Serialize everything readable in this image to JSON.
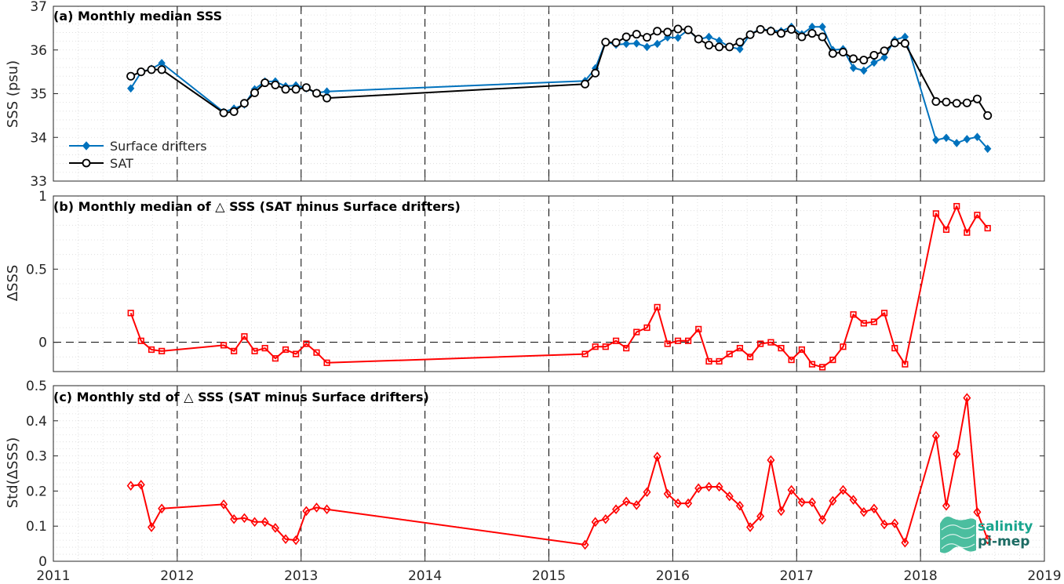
{
  "colors": {
    "drifters": "#0072BD",
    "sat": "#000000",
    "delta": "#FF0000",
    "grid": "#d9d9d9",
    "axis": "#262626"
  },
  "chart_data": [
    {
      "type": "line",
      "title": "(a) Monthly median SSS",
      "ylabel": "SSS (psu)",
      "xlabel": "",
      "xlim": [
        2011,
        2019
      ],
      "ylim": [
        33,
        37
      ],
      "yticks": [
        "33",
        "34",
        "35",
        "36",
        "37"
      ],
      "legend_position": "bottom-left",
      "grid": true,
      "series": [
        {
          "name": "Surface drifters",
          "marker": "diamond-filled",
          "x": [
            2011.625,
            2011.708,
            2011.792,
            2011.875,
            2012.375,
            2012.458,
            2012.542,
            2012.625,
            2012.708,
            2012.792,
            2012.875,
            2012.958,
            2013.042,
            2013.125,
            2013.208,
            2015.292,
            2015.375,
            2015.458,
            2015.542,
            2015.625,
            2015.708,
            2015.792,
            2015.875,
            2015.958,
            2016.042,
            2016.125,
            2016.208,
            2016.292,
            2016.375,
            2016.458,
            2016.542,
            2016.625,
            2016.708,
            2016.792,
            2016.875,
            2016.958,
            2017.042,
            2017.125,
            2017.208,
            2017.292,
            2017.375,
            2017.458,
            2017.542,
            2017.625,
            2017.708,
            2017.792,
            2017.875,
            2018.125,
            2018.208,
            2018.292,
            2018.375,
            2018.458,
            2018.542
          ],
          "y": [
            35.12,
            35.49,
            35.57,
            35.7,
            34.58,
            34.66,
            34.75,
            35.1,
            35.28,
            35.28,
            35.17,
            35.19,
            35.12,
            35.02,
            35.05,
            35.29,
            35.58,
            36.19,
            36.12,
            36.14,
            36.15,
            36.07,
            36.14,
            36.29,
            36.28,
            36.46,
            36.24,
            36.3,
            36.21,
            36.07,
            36.02,
            36.36,
            36.48,
            36.45,
            36.43,
            36.53,
            36.36,
            36.53,
            36.53,
            36.0,
            36.02,
            35.59,
            35.53,
            35.71,
            35.83,
            36.23,
            36.3,
            33.94,
            33.99,
            33.87,
            33.96,
            34.01,
            33.74
          ]
        },
        {
          "name": "SAT",
          "marker": "circle-open",
          "x": [
            2011.625,
            2011.708,
            2011.792,
            2011.875,
            2012.375,
            2012.458,
            2012.542,
            2012.625,
            2012.708,
            2012.792,
            2012.875,
            2012.958,
            2013.042,
            2013.125,
            2013.208,
            2015.292,
            2015.375,
            2015.458,
            2015.542,
            2015.625,
            2015.708,
            2015.792,
            2015.875,
            2015.958,
            2016.042,
            2016.125,
            2016.208,
            2016.292,
            2016.375,
            2016.458,
            2016.542,
            2016.625,
            2016.708,
            2016.792,
            2016.875,
            2016.958,
            2017.042,
            2017.125,
            2017.208,
            2017.292,
            2017.375,
            2017.458,
            2017.542,
            2017.625,
            2017.708,
            2017.792,
            2017.875,
            2018.125,
            2018.208,
            2018.292,
            2018.375,
            2018.458,
            2018.542
          ],
          "y": [
            35.4,
            35.5,
            35.55,
            35.55,
            34.56,
            34.59,
            34.78,
            35.02,
            35.25,
            35.2,
            35.1,
            35.1,
            35.14,
            35.01,
            34.9,
            35.22,
            35.47,
            36.18,
            36.17,
            36.3,
            36.36,
            36.29,
            36.43,
            36.41,
            36.48,
            36.46,
            36.25,
            36.11,
            36.07,
            36.07,
            36.18,
            36.35,
            36.47,
            36.43,
            36.38,
            36.47,
            36.3,
            36.38,
            36.3,
            35.92,
            35.95,
            35.8,
            35.77,
            35.88,
            35.98,
            36.16,
            36.15,
            34.82,
            34.81,
            34.78,
            34.79,
            34.88,
            34.5
          ]
        }
      ]
    },
    {
      "type": "line",
      "title": "(b) Monthly median of △ SSS (SAT minus Surface drifters)",
      "ylabel": "ΔSSS",
      "xlabel": "",
      "xlim": [
        2011,
        2019
      ],
      "ylim": [
        -0.2,
        1
      ],
      "yticks": [
        "0",
        "0.5",
        "1"
      ],
      "zero_line": true,
      "grid": true,
      "series": [
        {
          "name": "",
          "marker": "square-open",
          "x": [
            2011.625,
            2011.708,
            2011.792,
            2011.875,
            2012.375,
            2012.458,
            2012.542,
            2012.625,
            2012.708,
            2012.792,
            2012.875,
            2012.958,
            2013.042,
            2013.125,
            2013.208,
            2015.292,
            2015.375,
            2015.458,
            2015.542,
            2015.625,
            2015.708,
            2015.792,
            2015.875,
            2015.958,
            2016.042,
            2016.125,
            2016.208,
            2016.292,
            2016.375,
            2016.458,
            2016.542,
            2016.625,
            2016.708,
            2016.792,
            2016.875,
            2016.958,
            2017.042,
            2017.125,
            2017.208,
            2017.292,
            2017.375,
            2017.458,
            2017.542,
            2017.625,
            2017.708,
            2017.792,
            2017.875,
            2018.125,
            2018.208,
            2018.292,
            2018.375,
            2018.458,
            2018.542
          ],
          "y": [
            0.2,
            0.01,
            -0.05,
            -0.06,
            -0.02,
            -0.06,
            0.04,
            -0.06,
            -0.04,
            -0.11,
            -0.05,
            -0.08,
            -0.01,
            -0.07,
            -0.14,
            -0.08,
            -0.03,
            -0.03,
            0.01,
            -0.04,
            0.07,
            0.1,
            0.24,
            -0.01,
            0.01,
            0.01,
            0.09,
            -0.13,
            -0.13,
            -0.08,
            -0.04,
            -0.1,
            -0.01,
            0.0,
            -0.04,
            -0.12,
            -0.05,
            -0.15,
            -0.17,
            -0.12,
            -0.03,
            0.19,
            0.13,
            0.14,
            0.2,
            -0.04,
            -0.15,
            0.88,
            0.77,
            0.93,
            0.75,
            0.87,
            0.78
          ]
        }
      ]
    },
    {
      "type": "line",
      "title": "(c) Monthly std of △ SSS (SAT minus Surface drifters)",
      "ylabel": "Std(ΔSSS)",
      "xlabel": "",
      "xlim": [
        2011,
        2019
      ],
      "ylim": [
        0,
        0.5
      ],
      "yticks": [
        "0",
        "0.1",
        "0.2",
        "0.3",
        "0.4",
        "0.5"
      ],
      "xticks": [
        "2011",
        "2012",
        "2013",
        "2014",
        "2015",
        "2016",
        "2017",
        "2018",
        "2019"
      ],
      "grid": true,
      "series": [
        {
          "name": "",
          "marker": "diamond-open",
          "x": [
            2011.625,
            2011.708,
            2011.792,
            2011.875,
            2012.375,
            2012.458,
            2012.542,
            2012.625,
            2012.708,
            2012.792,
            2012.875,
            2012.958,
            2013.042,
            2013.125,
            2013.208,
            2015.292,
            2015.375,
            2015.458,
            2015.542,
            2015.625,
            2015.708,
            2015.792,
            2015.875,
            2015.958,
            2016.042,
            2016.125,
            2016.208,
            2016.292,
            2016.375,
            2016.458,
            2016.542,
            2016.625,
            2016.708,
            2016.792,
            2016.875,
            2016.958,
            2017.042,
            2017.125,
            2017.208,
            2017.292,
            2017.375,
            2017.458,
            2017.542,
            2017.625,
            2017.708,
            2017.792,
            2017.875,
            2018.125,
            2018.208,
            2018.292,
            2018.375,
            2018.458,
            2018.542
          ],
          "y": [
            0.215,
            0.218,
            0.097,
            0.15,
            0.162,
            0.12,
            0.123,
            0.112,
            0.112,
            0.095,
            0.063,
            0.06,
            0.143,
            0.153,
            0.148,
            0.047,
            0.112,
            0.12,
            0.148,
            0.17,
            0.16,
            0.197,
            0.298,
            0.192,
            0.165,
            0.165,
            0.208,
            0.212,
            0.212,
            0.185,
            0.158,
            0.097,
            0.128,
            0.288,
            0.143,
            0.203,
            0.168,
            0.168,
            0.118,
            0.172,
            0.203,
            0.175,
            0.14,
            0.15,
            0.105,
            0.108,
            0.053,
            0.357,
            0.158,
            0.305,
            0.465,
            0.14,
            0.062
          ]
        }
      ]
    }
  ],
  "logo": {
    "line1": "salinity",
    "line2": "pi-mep"
  }
}
